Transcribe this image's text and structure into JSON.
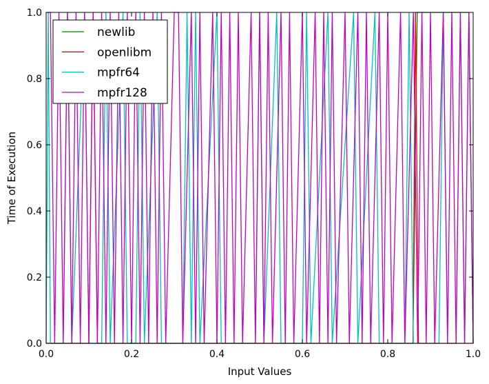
{
  "chart_data": {
    "type": "line",
    "title": "",
    "xlabel": "Input Values",
    "ylabel": "Time of Execution",
    "xlim": [
      0.0,
      1.0
    ],
    "ylim": [
      0.0,
      1.0
    ],
    "grid": false,
    "legend_position": "top-left",
    "x_ticks": [
      "0.0",
      "0.2",
      "0.4",
      "0.6",
      "0.8",
      "1.0"
    ],
    "y_ticks": [
      "0.0",
      "0.2",
      "0.4",
      "0.6",
      "0.8",
      "1.0"
    ],
    "series": [
      {
        "name": "newlib",
        "color": "#008000",
        "points": [
          [
            0.0,
            0.0
          ],
          [
            0.859,
            0.0
          ],
          [
            0.869,
            1.0
          ],
          [
            0.99,
            1.0
          ],
          [
            1.0,
            0.0
          ]
        ]
      },
      {
        "name": "openlibm",
        "color": "#ff0000",
        "points": [
          [
            0.0,
            0.0
          ],
          [
            0.1,
            0.0
          ],
          [
            0.11,
            1.0
          ],
          [
            0.12,
            0.0
          ],
          [
            0.859,
            0.0
          ],
          [
            0.865,
            1.0
          ],
          [
            0.872,
            0.0
          ],
          [
            1.0,
            0.0
          ]
        ]
      },
      {
        "name": "mpfr64",
        "color": "#00bfbf",
        "points": [
          [
            0.0,
            0.0
          ],
          [
            0.005,
            1.0
          ],
          [
            0.01,
            0.0
          ],
          [
            0.04,
            0.0
          ],
          [
            0.05,
            1.0
          ],
          [
            0.06,
            0.0
          ],
          [
            0.09,
            1.0
          ],
          [
            0.1,
            0.0
          ],
          [
            0.13,
            0.0
          ],
          [
            0.14,
            1.0
          ],
          [
            0.15,
            0.0
          ],
          [
            0.18,
            1.0
          ],
          [
            0.19,
            0.0
          ],
          [
            0.21,
            0.0
          ],
          [
            0.22,
            1.0
          ],
          [
            0.23,
            0.0
          ],
          [
            0.26,
            1.0
          ],
          [
            0.27,
            0.0
          ],
          [
            0.32,
            0.0
          ],
          [
            0.33,
            1.0
          ],
          [
            0.34,
            0.0
          ],
          [
            0.35,
            1.0
          ],
          [
            0.36,
            0.0
          ],
          [
            0.4,
            1.0
          ],
          [
            0.41,
            0.0
          ],
          [
            0.49,
            0.0
          ],
          [
            0.5,
            1.0
          ],
          [
            0.51,
            0.0
          ],
          [
            0.54,
            1.0
          ],
          [
            0.55,
            0.0
          ],
          [
            0.6,
            0.0
          ],
          [
            0.61,
            1.0
          ],
          [
            0.62,
            0.0
          ],
          [
            0.66,
            1.0
          ],
          [
            0.67,
            0.0
          ],
          [
            0.72,
            1.0
          ],
          [
            0.73,
            0.0
          ],
          [
            0.77,
            1.0
          ],
          [
            0.78,
            0.0
          ],
          [
            0.84,
            0.0
          ],
          [
            0.85,
            1.0
          ],
          [
            0.86,
            0.0
          ],
          [
            0.92,
            0.0
          ],
          [
            0.93,
            1.0
          ],
          [
            0.94,
            0.0
          ],
          [
            0.96,
            0.0
          ],
          [
            0.97,
            1.0
          ],
          [
            0.98,
            0.0
          ],
          [
            0.99,
            1.0
          ],
          [
            1.0,
            0.0
          ]
        ]
      },
      {
        "name": "mpfr128",
        "color": "#bf00bf",
        "points": [
          [
            0.0,
            1.0
          ],
          [
            0.01,
            1.0
          ],
          [
            0.02,
            0.0
          ],
          [
            0.03,
            1.0
          ],
          [
            0.04,
            0.0
          ],
          [
            0.05,
            1.0
          ],
          [
            0.06,
            0.0
          ],
          [
            0.07,
            1.0
          ],
          [
            0.08,
            0.0
          ],
          [
            0.09,
            1.0
          ],
          [
            0.1,
            0.0
          ],
          [
            0.11,
            1.0
          ],
          [
            0.12,
            0.0
          ],
          [
            0.13,
            1.0
          ],
          [
            0.14,
            0.0
          ],
          [
            0.15,
            1.0
          ],
          [
            0.16,
            0.0
          ],
          [
            0.17,
            1.0
          ],
          [
            0.18,
            0.0
          ],
          [
            0.19,
            1.0
          ],
          [
            0.2,
            0.0
          ],
          [
            0.21,
            1.0
          ],
          [
            0.22,
            0.0
          ],
          [
            0.23,
            1.0
          ],
          [
            0.24,
            0.0
          ],
          [
            0.25,
            1.0
          ],
          [
            0.26,
            0.0
          ],
          [
            0.27,
            1.0
          ],
          [
            0.28,
            0.0
          ],
          [
            0.3,
            1.0
          ],
          [
            0.31,
            1.0
          ],
          [
            0.32,
            0.0
          ],
          [
            0.34,
            1.0
          ],
          [
            0.35,
            0.0
          ],
          [
            0.36,
            1.0
          ],
          [
            0.37,
            0.0
          ],
          [
            0.39,
            1.0
          ],
          [
            0.4,
            0.0
          ],
          [
            0.41,
            1.0
          ],
          [
            0.42,
            0.0
          ],
          [
            0.43,
            1.0
          ],
          [
            0.44,
            0.0
          ],
          [
            0.45,
            1.0
          ],
          [
            0.46,
            0.0
          ],
          [
            0.48,
            1.0
          ],
          [
            0.49,
            0.0
          ],
          [
            0.5,
            1.0
          ],
          [
            0.51,
            0.0
          ],
          [
            0.52,
            1.0
          ],
          [
            0.53,
            0.0
          ],
          [
            0.55,
            1.0
          ],
          [
            0.56,
            0.0
          ],
          [
            0.57,
            1.0
          ],
          [
            0.58,
            0.0
          ],
          [
            0.6,
            1.0
          ],
          [
            0.61,
            0.0
          ],
          [
            0.63,
            1.0
          ],
          [
            0.64,
            0.0
          ],
          [
            0.65,
            1.0
          ],
          [
            0.66,
            0.0
          ],
          [
            0.67,
            1.0
          ],
          [
            0.68,
            0.0
          ],
          [
            0.7,
            1.0
          ],
          [
            0.71,
            0.0
          ],
          [
            0.73,
            1.0
          ],
          [
            0.74,
            0.0
          ],
          [
            0.75,
            1.0
          ],
          [
            0.76,
            0.0
          ],
          [
            0.78,
            1.0
          ],
          [
            0.79,
            0.0
          ],
          [
            0.8,
            1.0
          ],
          [
            0.81,
            0.0
          ],
          [
            0.83,
            1.0
          ],
          [
            0.84,
            0.0
          ],
          [
            0.86,
            1.0
          ],
          [
            0.87,
            0.0
          ],
          [
            0.88,
            1.0
          ],
          [
            0.89,
            0.0
          ],
          [
            0.9,
            1.0
          ],
          [
            0.91,
            0.0
          ],
          [
            0.93,
            1.0
          ],
          [
            0.94,
            0.0
          ],
          [
            0.95,
            1.0
          ],
          [
            0.96,
            0.0
          ],
          [
            0.97,
            1.0
          ],
          [
            0.98,
            0.0
          ],
          [
            0.99,
            1.0
          ],
          [
            1.0,
            0.0
          ]
        ]
      }
    ]
  }
}
